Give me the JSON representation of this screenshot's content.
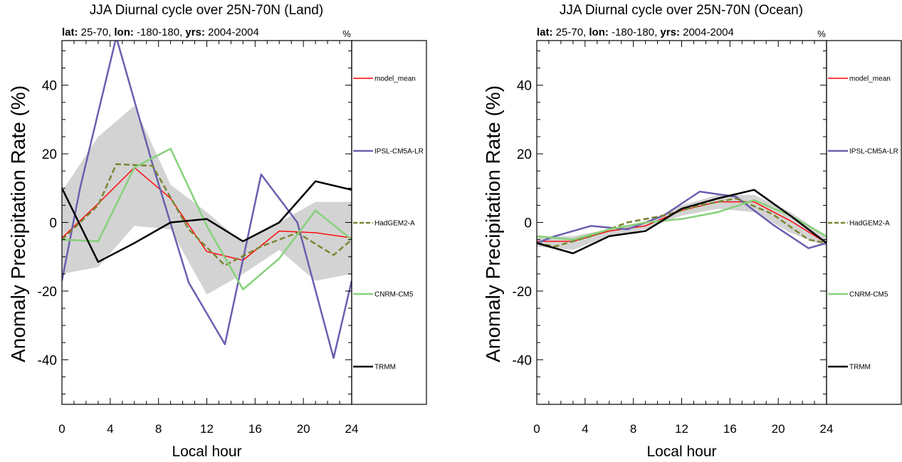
{
  "chart_data": [
    {
      "type": "line",
      "title": "JJA Diurnal cycle over 25N-70N (Land)",
      "subtitle": [
        {
          "text": "lat:",
          "bold": true
        },
        {
          "text": " 25-70, ",
          "bold": false
        },
        {
          "text": "lon:",
          "bold": true
        },
        {
          "text": " -180-180, ",
          "bold": false
        },
        {
          "text": "yrs:",
          "bold": true
        },
        {
          "text": " 2004-2004",
          "bold": false
        }
      ],
      "units_label": "%",
      "xlabel": "Local hour",
      "ylabel": "Anomaly Precipitation Rate (%)",
      "xlim": [
        0,
        24
      ],
      "ylim": [
        -53,
        53
      ],
      "xticks": [
        0,
        4,
        8,
        12,
        16,
        20,
        24
      ],
      "yticks": [
        -40,
        -20,
        0,
        20,
        40
      ],
      "band": {
        "color": "#d3d3d3",
        "x": [
          0,
          3,
          6,
          9,
          12,
          15,
          18,
          21,
          24
        ],
        "upper": [
          9,
          25,
          34,
          11,
          3,
          -6,
          0,
          6,
          6
        ],
        "lower": [
          -15,
          -13,
          -1,
          -2,
          -21,
          -15,
          -8,
          -17,
          -15
        ]
      },
      "series": [
        {
          "name": "model_mean",
          "color": "#ff0000",
          "width": 1.4,
          "dash": "",
          "x": [
            0,
            3,
            6,
            9,
            12,
            15,
            18,
            21,
            24
          ],
          "values": [
            -4.5,
            5.5,
            16,
            7,
            -8.5,
            -11,
            -2.5,
            -3,
            -4.5
          ]
        },
        {
          "name": "IPSL-CM5A-LR",
          "color": "#6a5fb0",
          "width": 2.5,
          "dash": "",
          "x": [
            0,
            1.5,
            4.5,
            7.5,
            10.5,
            13.5,
            16.5,
            19.5,
            22.5,
            24
          ],
          "values": [
            -17,
            10,
            54,
            17,
            -17.5,
            -35.5,
            14,
            0,
            -39.5,
            -17
          ]
        },
        {
          "name": "HadGEM2-A",
          "color": "#7a8530",
          "width": 2.5,
          "dash": "8,4",
          "x": [
            0,
            3,
            4.5,
            7.5,
            10.5,
            13.5,
            16.5,
            19.5,
            22.5,
            24
          ],
          "values": [
            -5,
            5,
            17,
            16.5,
            -2,
            -12.5,
            -7,
            -3,
            -9.5,
            -5
          ]
        },
        {
          "name": "CNRM-CM5",
          "color": "#86d17b",
          "width": 2.5,
          "dash": "",
          "x": [
            0,
            3,
            6,
            9,
            12,
            15,
            18,
            21,
            24
          ],
          "values": [
            -5,
            -5.5,
            16,
            21.5,
            -1,
            -19.5,
            -10.5,
            3.5,
            -5
          ]
        },
        {
          "name": "TRMM",
          "color": "#000000",
          "width": 2.5,
          "dash": "",
          "x": [
            0,
            3,
            6,
            9,
            12,
            15,
            18,
            21,
            24
          ],
          "values": [
            10,
            -11.5,
            -6,
            0,
            1,
            -5.5,
            0,
            12,
            9.5
          ]
        }
      ],
      "legend": {
        "placement": "right",
        "labels": [
          "model_mean",
          "IPSL-CM5A-LR",
          "HadGEM2-A",
          "CNRM-CM5",
          "TRMM"
        ]
      }
    },
    {
      "type": "line",
      "title": "JJA Diurnal cycle over 25N-70N (Ocean)",
      "subtitle": [
        {
          "text": "lat:",
          "bold": true
        },
        {
          "text": " 25-70, ",
          "bold": false
        },
        {
          "text": "lon:",
          "bold": true
        },
        {
          "text": " -180-180, ",
          "bold": false
        },
        {
          "text": "yrs:",
          "bold": true
        },
        {
          "text": " 2004-2004",
          "bold": false
        }
      ],
      "units_label": "%",
      "xlabel": "Local hour",
      "ylabel": "Anomaly Precipitation Rate (%)",
      "xlim": [
        0,
        24
      ],
      "ylim": [
        -53,
        53
      ],
      "xticks": [
        0,
        4,
        8,
        12,
        16,
        20,
        24
      ],
      "yticks": [
        -40,
        -20,
        0,
        20,
        40
      ],
      "band": {
        "color": "#d3d3d3",
        "x": [
          0,
          3,
          6,
          9,
          12,
          15,
          18,
          21,
          24
        ],
        "upper": [
          -4,
          -4,
          -2,
          0,
          5,
          8,
          8,
          3,
          -4
        ],
        "lower": [
          -7,
          -8,
          -4,
          -2,
          2,
          4,
          3,
          -3,
          -7
        ]
      },
      "series": [
        {
          "name": "model_mean",
          "color": "#ff0000",
          "width": 1.4,
          "dash": "",
          "x": [
            0,
            3,
            6,
            9,
            12,
            15,
            18,
            21,
            24
          ],
          "values": [
            -5.5,
            -5.5,
            -2.5,
            -1,
            3.5,
            6,
            6,
            0.5,
            -6
          ]
        },
        {
          "name": "IPSL-CM5A-LR",
          "color": "#6a5fb0",
          "width": 2.5,
          "dash": "",
          "x": [
            0,
            1.5,
            4.5,
            7.5,
            10.5,
            13.5,
            16.5,
            19.5,
            22.5,
            24
          ],
          "values": [
            -6,
            -4,
            -1,
            -2,
            2,
            9,
            7.5,
            -0.5,
            -7.5,
            -6
          ]
        },
        {
          "name": "HadGEM2-A",
          "color": "#7a8530",
          "width": 2.5,
          "dash": "8,4",
          "x": [
            0,
            1.5,
            4.5,
            7.5,
            10.5,
            13.5,
            16.5,
            19.5,
            22.5,
            24
          ],
          "values": [
            -6,
            -7,
            -4,
            0,
            2,
            5,
            7,
            2.5,
            -5,
            -6
          ]
        },
        {
          "name": "CNRM-CM5",
          "color": "#86d17b",
          "width": 2.5,
          "dash": "",
          "x": [
            0,
            3,
            6,
            9,
            12,
            15,
            18,
            21,
            24
          ],
          "values": [
            -4,
            -5,
            -2,
            0,
            1,
            3,
            6.5,
            2,
            -4
          ]
        },
        {
          "name": "TRMM",
          "color": "#000000",
          "width": 2.5,
          "dash": "",
          "x": [
            0,
            3,
            6,
            9,
            12,
            15,
            18,
            21,
            24
          ],
          "values": [
            -6,
            -9,
            -4,
            -2.5,
            4,
            7,
            9.5,
            2,
            -6
          ]
        }
      ],
      "legend": {
        "placement": "right",
        "labels": [
          "model_mean",
          "IPSL-CM5A-LR",
          "HadGEM2-A",
          "CNRM-CM5",
          "TRMM"
        ]
      }
    }
  ]
}
